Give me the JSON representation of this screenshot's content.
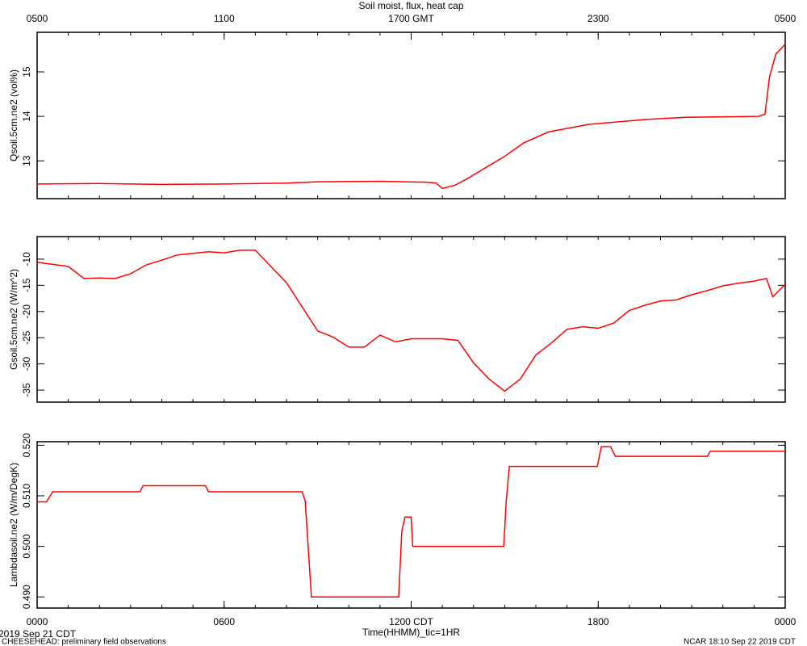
{
  "chart_data": [
    {
      "type": "line",
      "title": "Soil moist, flux, heat cap",
      "ylabel": "Qsoil.5cm.ne2 (vol%)",
      "xlim": [
        0,
        24
      ],
      "ylim": [
        12.15,
        15.89
      ],
      "yticks": [
        13,
        14,
        15
      ],
      "x2ticks": [
        {
          "value": 0,
          "label": "0500"
        },
        {
          "value": 6,
          "label": "1100"
        },
        {
          "value": 12,
          "label": "1700 GMT"
        },
        {
          "value": 18,
          "label": "2300"
        },
        {
          "value": 24,
          "label": "0500"
        }
      ],
      "series": [
        {
          "color": "#ff0000",
          "x": [
            0,
            2,
            4,
            6,
            8,
            9,
            11,
            12.5,
            12.8,
            13,
            13.4,
            13.8,
            14.35,
            15,
            15.6,
            16.4,
            17.7,
            19.5,
            20.8,
            23.15,
            23.35,
            23.5,
            23.7,
            24
          ],
          "values": [
            12.48,
            12.49,
            12.47,
            12.48,
            12.5,
            12.53,
            12.54,
            12.52,
            12.5,
            12.38,
            12.45,
            12.6,
            12.83,
            13.1,
            13.4,
            13.65,
            13.82,
            13.93,
            13.98,
            14.0,
            14.05,
            14.9,
            15.4,
            15.62
          ]
        }
      ]
    },
    {
      "type": "line",
      "ylabel": "Gsoil.5cm.ne2 (W/m^2)",
      "xlim": [
        0,
        24
      ],
      "ylim": [
        -37.3,
        -5.7
      ],
      "yticks": [
        -35,
        -30,
        -25,
        -20,
        -15,
        -10
      ],
      "series": [
        {
          "color": "#ff0000",
          "x": [
            0,
            1,
            1.5,
            2,
            2.5,
            3,
            3.5,
            4,
            4.5,
            5,
            5.5,
            6,
            6.5,
            7,
            7.5,
            8,
            8.5,
            9,
            9.5,
            10,
            10.5,
            11,
            11.5,
            12,
            12.5,
            13,
            13.5,
            14,
            14.5,
            15,
            15.5,
            16,
            16.5,
            17,
            17.5,
            18,
            18.5,
            19,
            19.5,
            20,
            20.5,
            21,
            21.5,
            22,
            22.5,
            23,
            23.4,
            23.6,
            24
          ],
          "values": [
            -10.6,
            -11.4,
            -13.7,
            -13.6,
            -13.7,
            -12.8,
            -11.1,
            -10.2,
            -9.2,
            -8.9,
            -8.6,
            -8.8,
            -8.3,
            -8.3,
            -11.4,
            -14.5,
            -19.1,
            -23.7,
            -24.9,
            -26.8,
            -26.8,
            -24.5,
            -25.8,
            -25.2,
            -25.2,
            -25.2,
            -25.5,
            -29.8,
            -32.9,
            -35.2,
            -32.9,
            -28.3,
            -26,
            -23.4,
            -22.9,
            -23.2,
            -22.2,
            -19.8,
            -18.8,
            -18,
            -17.8,
            -16.8,
            -16,
            -15.1,
            -14.6,
            -14.2,
            -13.7,
            -17.2,
            -14.8
          ]
        }
      ]
    },
    {
      "type": "line",
      "ylabel": "Lambdasoil.ne2 (W/m/DegK)",
      "xlabel": "Time(HHMM)_tic=1HR",
      "date_label": "2019 Sep 21 CDT",
      "xlim": [
        0,
        24
      ],
      "ylim": [
        0.4878,
        0.5207
      ],
      "yticks": [
        {
          "value": 0.49,
          "label": "0.490"
        },
        {
          "value": 0.5,
          "label": "0.500"
        },
        {
          "value": 0.51,
          "label": "0.510"
        },
        {
          "value": 0.52,
          "label": "0.520"
        }
      ],
      "xticks": [
        {
          "value": 0,
          "label": "0000"
        },
        {
          "value": 6,
          "label": "0600"
        },
        {
          "value": 12,
          "label": "1200 CDT"
        },
        {
          "value": 18,
          "label": "1800"
        },
        {
          "value": 24,
          "label": "0000"
        }
      ],
      "series": [
        {
          "color": "#ff0000",
          "x": [
            0,
            0.3,
            0.5,
            3.3,
            3.4,
            5.4,
            5.5,
            8.5,
            8.6,
            8.8,
            11.6,
            11.7,
            11.8,
            12.0,
            12.05,
            14.97,
            15.05,
            15.15,
            17.97,
            18.1,
            18.4,
            18.55,
            21.5,
            21.6,
            24
          ],
          "values": [
            0.5088,
            0.5088,
            0.5108,
            0.5108,
            0.512,
            0.512,
            0.5108,
            0.5108,
            0.509,
            0.49,
            0.49,
            0.503,
            0.5058,
            0.5058,
            0.5,
            0.5,
            0.509,
            0.5158,
            0.5158,
            0.5197,
            0.5197,
            0.5178,
            0.5178,
            0.5188,
            0.5188
          ]
        }
      ]
    }
  ],
  "footer": {
    "left": "CHEESEHEAD: preliminary field observations",
    "right": "NCAR 18:10 Sep 22 2019 CDT"
  }
}
